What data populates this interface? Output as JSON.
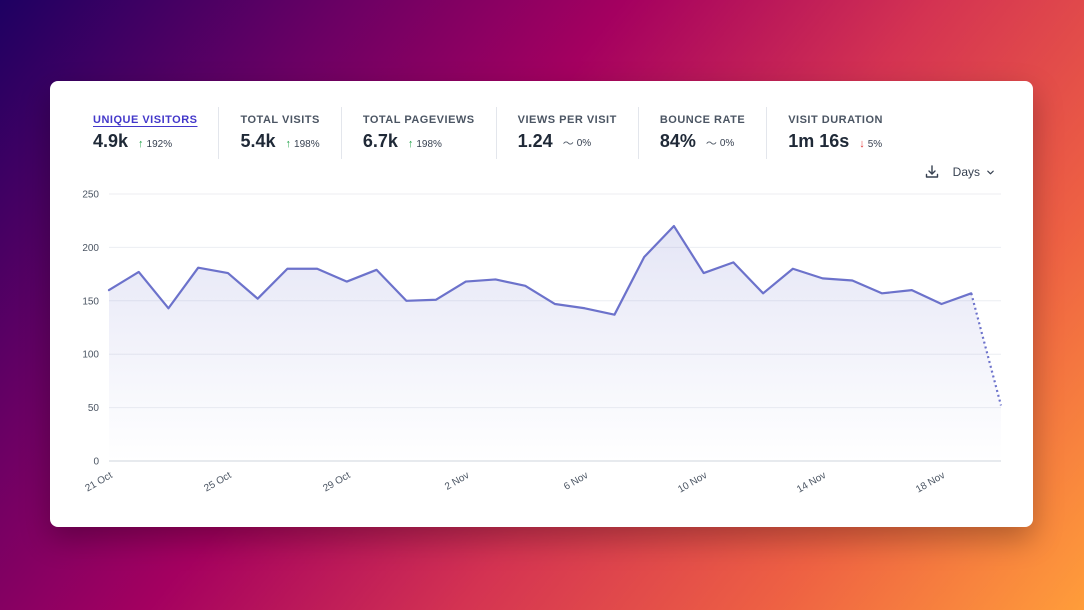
{
  "stats": [
    {
      "label": "Unique visitors",
      "value": "4.9k",
      "change": "192%",
      "direction": "up",
      "active": true
    },
    {
      "label": "Total visits",
      "value": "5.4k",
      "change": "198%",
      "direction": "up",
      "active": false
    },
    {
      "label": "Total pageviews",
      "value": "6.7k",
      "change": "198%",
      "direction": "up",
      "active": false
    },
    {
      "label": "Views per visit",
      "value": "1.24",
      "change": "0%",
      "direction": "flat",
      "active": false
    },
    {
      "label": "Bounce rate",
      "value": "84%",
      "change": "0%",
      "direction": "flat",
      "active": false
    },
    {
      "label": "Visit duration",
      "value": "1m 16s",
      "change": "5%",
      "direction": "down",
      "active": false
    }
  ],
  "controls": {
    "download_icon": "download-icon",
    "interval_label": "Days",
    "interval_icon": "chevron-down-icon"
  },
  "colors": {
    "line": "#6c72cb",
    "up": "#22a34a",
    "down": "#e23b3b",
    "active_label": "#4338ca"
  },
  "chart_data": {
    "type": "area",
    "ylim": [
      0,
      250
    ],
    "yticks": [
      0,
      50,
      100,
      150,
      200,
      250
    ],
    "xtick_labels": [
      "21 Oct",
      "25 Oct",
      "29 Oct",
      "2 Nov",
      "6 Nov",
      "10 Nov",
      "14 Nov",
      "18 Nov"
    ],
    "x": [
      "21 Oct",
      "22 Oct",
      "23 Oct",
      "24 Oct",
      "25 Oct",
      "26 Oct",
      "27 Oct",
      "28 Oct",
      "29 Oct",
      "30 Oct",
      "31 Oct",
      "1 Nov",
      "2 Nov",
      "3 Nov",
      "4 Nov",
      "5 Nov",
      "6 Nov",
      "7 Nov",
      "8 Nov",
      "9 Nov",
      "10 Nov",
      "11 Nov",
      "12 Nov",
      "13 Nov",
      "14 Nov",
      "15 Nov",
      "16 Nov",
      "17 Nov",
      "18 Nov",
      "19 Nov",
      "20 Nov"
    ],
    "values": [
      160,
      177,
      143,
      181,
      176,
      152,
      180,
      180,
      168,
      179,
      150,
      151,
      168,
      170,
      164,
      147,
      143,
      137,
      191,
      220,
      176,
      186,
      157,
      180,
      171,
      169,
      157,
      160,
      147,
      157,
      52
    ],
    "partial_last_point": true,
    "grid": true,
    "legend": "none"
  }
}
